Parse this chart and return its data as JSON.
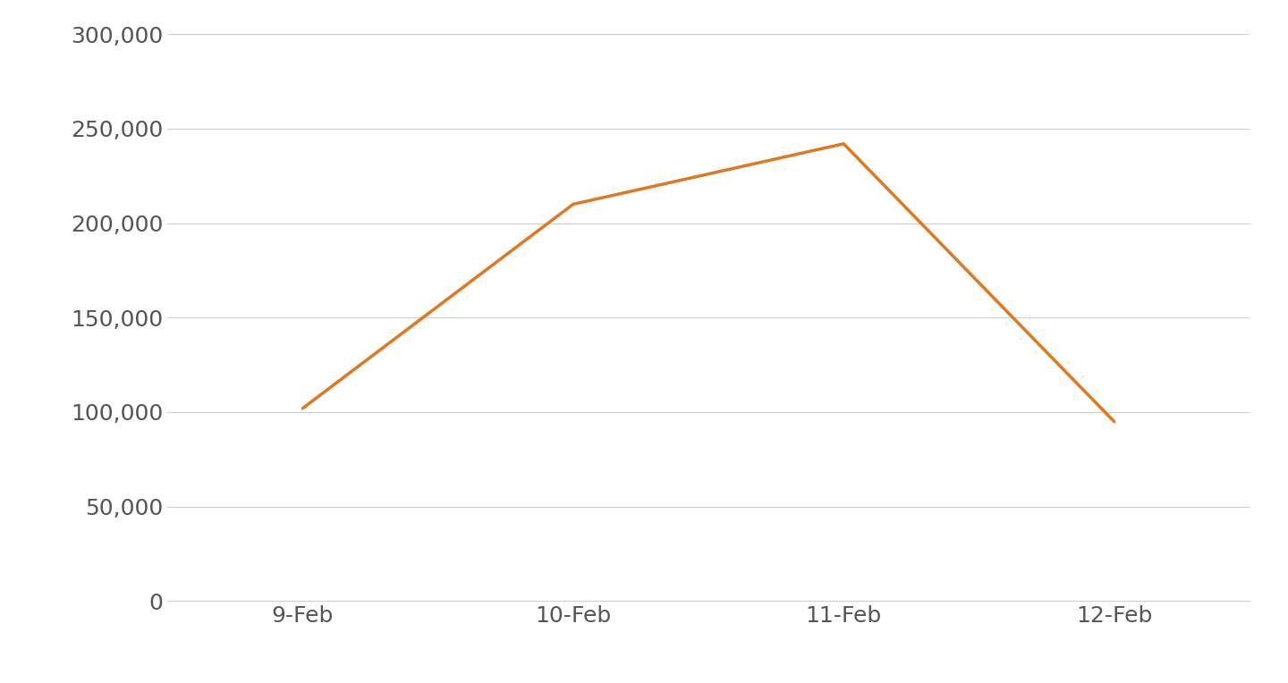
{
  "x_labels": [
    "9-Feb",
    "10-Feb",
    "11-Feb",
    "12-Feb"
  ],
  "y_values": [
    102000,
    210000,
    242000,
    95000
  ],
  "line_color": "#E07820",
  "line_width": 2.5,
  "ylim": [
    0,
    300000
  ],
  "yticks": [
    0,
    50000,
    100000,
    150000,
    200000,
    250000,
    300000
  ],
  "background_color": "#ffffff",
  "grid_color": "#d0d0d0",
  "tick_label_color": "#555555",
  "tick_label_fontsize": 18,
  "xlabel_fontsize": 18
}
